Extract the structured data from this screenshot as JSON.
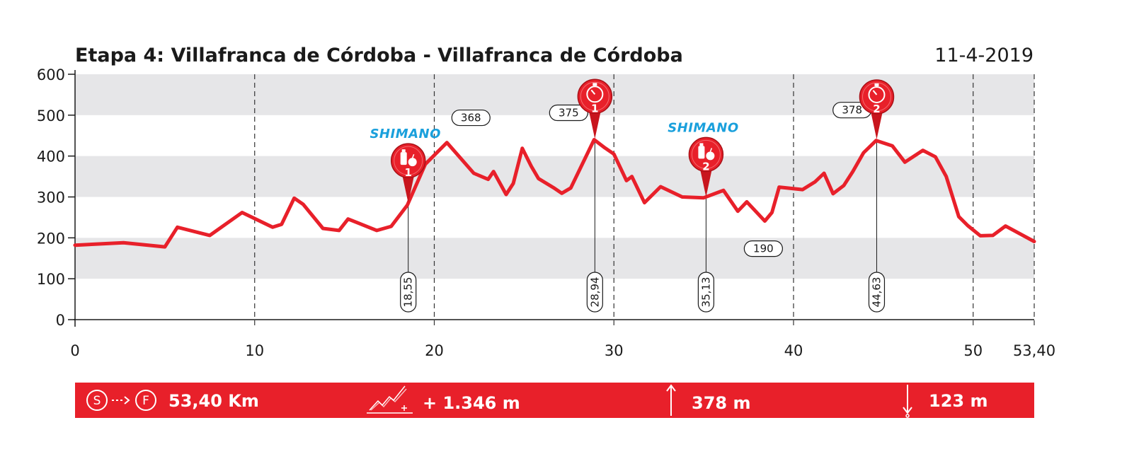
{
  "header": {
    "title": "Etapa 4: Villafranca de Córdoba - Villafranca de Córdoba",
    "date": "11-4-2019"
  },
  "chart_data": {
    "type": "area",
    "xlim": [
      0,
      53.4
    ],
    "ylim": [
      0,
      600
    ],
    "yticks": [
      "0",
      "100",
      "200",
      "300",
      "400",
      "500",
      "600"
    ],
    "xticks": [
      {
        "value": 0,
        "label": "0"
      },
      {
        "value": 10,
        "label": "10"
      },
      {
        "value": 20,
        "label": "20"
      },
      {
        "value": 30,
        "label": "30"
      },
      {
        "value": 40,
        "label": "40"
      },
      {
        "value": 50,
        "label": "50"
      },
      {
        "value": 53.4,
        "label": "53,40"
      }
    ],
    "banded_grid": true,
    "vertical_gridlines": [
      10,
      20,
      30,
      40,
      50,
      53.4
    ],
    "line_color": "#e8202a",
    "band_color": "#e6e6e8",
    "x": [
      0,
      2.7,
      5,
      5.7,
      7.5,
      9.3,
      11,
      11.5,
      12.2,
      12.7,
      13.8,
      14.7,
      15.2,
      16.8,
      17.6,
      18.5,
      19.5,
      20.7,
      22.2,
      23,
      23.3,
      24,
      24.4,
      24.9,
      25.4,
      25.8,
      26.7,
      27.1,
      27.6,
      28.9,
      29.5,
      30,
      30.7,
      31,
      31.7,
      32.6,
      33.8,
      35,
      36.1,
      36.9,
      37.4,
      38.4,
      38.8,
      39.2,
      40.5,
      41.2,
      41.7,
      42.2,
      42.8,
      43.3,
      43.9,
      44.6,
      45.5,
      46.2,
      47.2,
      47.9,
      48.5,
      49.2,
      49.7,
      50.4,
      51.1,
      51.8,
      53.4
    ],
    "y": [
      182,
      188,
      178,
      226,
      206,
      262,
      226,
      233,
      297,
      282,
      223,
      218,
      246,
      218,
      228,
      280,
      380,
      433,
      358,
      343,
      362,
      306,
      333,
      419,
      375,
      345,
      321,
      309,
      322,
      440,
      420,
      405,
      340,
      350,
      286,
      325,
      300,
      298,
      316,
      265,
      288,
      241,
      262,
      324,
      318,
      337,
      358,
      308,
      328,
      362,
      408,
      438,
      425,
      385,
      414,
      398,
      350,
      252,
      230,
      205,
      206,
      229,
      191
    ],
    "point_labels": [
      {
        "x": 20.7,
        "y": 433,
        "label": "368"
      },
      {
        "x": 28.9,
        "y": 440,
        "label": "375"
      },
      {
        "x": 38.4,
        "y": 241,
        "label": "190"
      },
      {
        "x": 44.6,
        "y": 438,
        "label": "378"
      }
    ],
    "markers": [
      {
        "type": "feed",
        "km": 18.55,
        "km_label": "18,55",
        "number": "1",
        "brand": "SHIMANO",
        "icon": "bottle-apple-icon"
      },
      {
        "type": "sprint",
        "km": 28.94,
        "km_label": "28,94",
        "number": "1",
        "icon": "stopwatch-icon"
      },
      {
        "type": "feed",
        "km": 35.13,
        "km_label": "35,13",
        "number": "2",
        "brand": "SHIMANO",
        "icon": "bottle-apple-icon"
      },
      {
        "type": "sprint",
        "km": 44.63,
        "km_label": "44,63",
        "number": "2",
        "icon": "stopwatch-icon"
      }
    ]
  },
  "summary": {
    "bar_color": "#e8202a",
    "start_letter": "S",
    "finish_letter": "F",
    "distance": "53,40 Km",
    "climb": "+ 1.346 m",
    "max_alt": "378 m",
    "min_alt": "123 m"
  }
}
